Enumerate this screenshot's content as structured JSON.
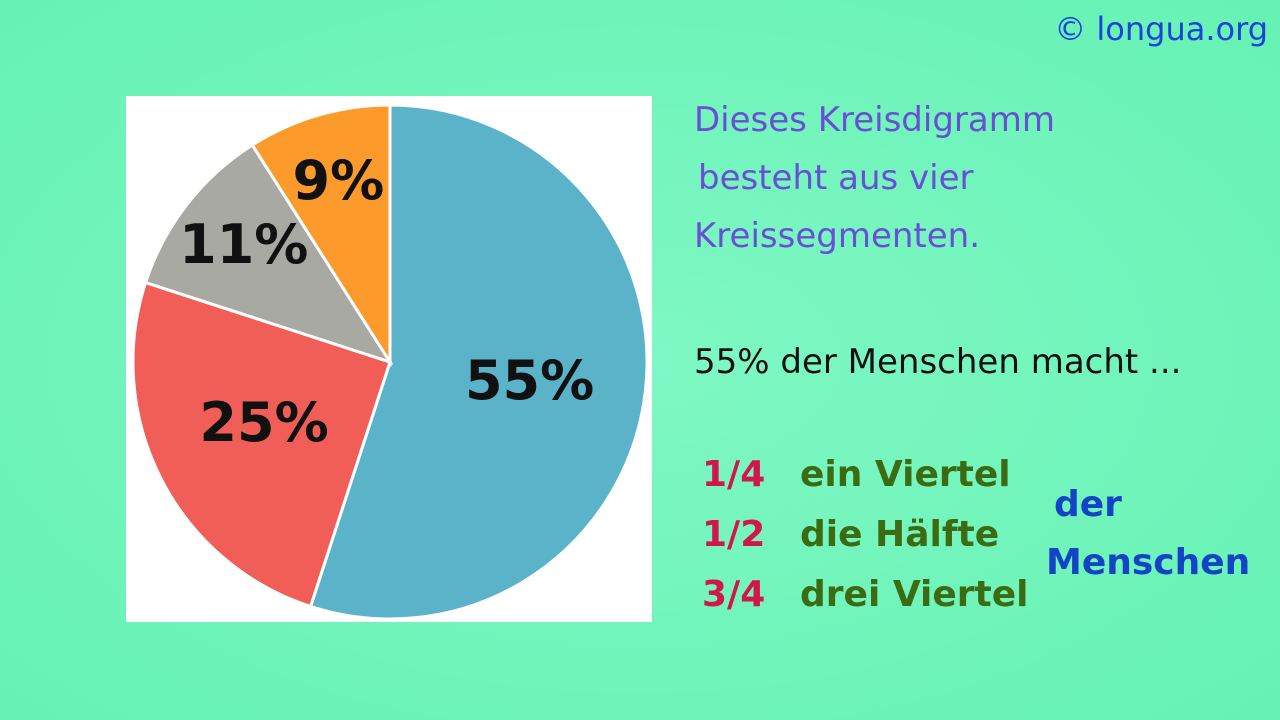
{
  "chart_data": {
    "type": "pie",
    "values": [
      55,
      25,
      11,
      9
    ],
    "value_labels": [
      "55%",
      "25%",
      "11%",
      "9%"
    ],
    "colors": [
      "#5bb3c9",
      "#f15e58",
      "#a9a9a3",
      "#fc9a2b"
    ]
  },
  "watermark": "© longua.org",
  "description": [
    "Dieses Kreisdigramm",
    "besteht aus vier",
    "Kreissegmenten."
  ],
  "statement": "55% der Menschen macht ...",
  "fractions": [
    {
      "fraction": "1/4",
      "words": "ein Viertel"
    },
    {
      "fraction": "1/2",
      "words": "die Hälfte"
    },
    {
      "fraction": "3/4",
      "words": "drei Viertel"
    }
  ],
  "suffix": [
    "der",
    "Menschen"
  ]
}
